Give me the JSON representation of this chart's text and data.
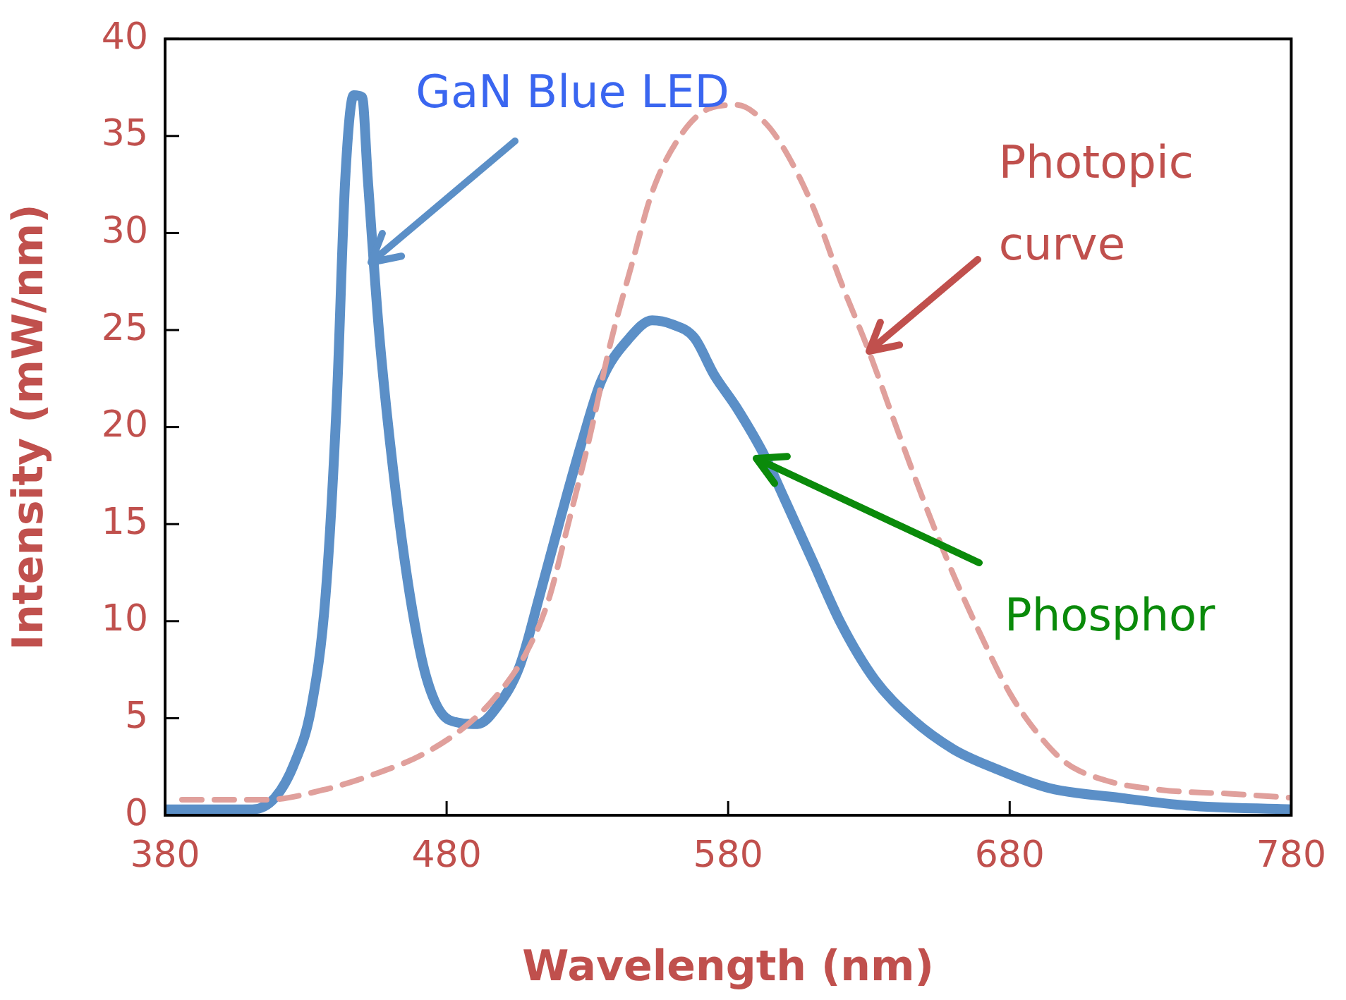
{
  "chart_data": {
    "type": "line",
    "xlabel": "Wavelength (nm)",
    "ylabel": "Intensity (mW/nm)",
    "xlim": [
      380,
      780
    ],
    "xticks": [
      380,
      480,
      580,
      680,
      780
    ],
    "ylim": [
      0,
      40
    ],
    "yticks": [
      0,
      5,
      10,
      15,
      20,
      25,
      30,
      35,
      40
    ],
    "grid": false,
    "legend": false,
    "marker": "none",
    "series": [
      {
        "color": "#5b8fc7",
        "line_style": "solid",
        "x": [
          380,
          411,
          419,
          426,
          432,
          437,
          441,
          444,
          447,
          450,
          452,
          456,
          461,
          467,
          473,
          481,
          491,
          498,
          506,
          513,
          521,
          528,
          535,
          545,
          553,
          560,
          568,
          575,
          583,
          593,
          600,
          610,
          620,
          632,
          645,
          660,
          675,
          694,
          719,
          743,
          780
        ],
        "values": [
          0.3,
          0.3,
          0.9,
          2.7,
          5.6,
          11.3,
          21.4,
          32.8,
          37.1,
          37,
          32.8,
          24.9,
          17.8,
          11.3,
          7,
          4.9,
          4.7,
          5.6,
          7.7,
          11.3,
          15.6,
          19.2,
          22.4,
          24.6,
          25.5,
          25.3,
          24.6,
          22.7,
          21,
          18.5,
          16.3,
          13.1,
          9.9,
          7,
          5,
          3.4,
          2.4,
          1.4,
          0.9,
          0.5,
          0.3
        ]
      },
      {
        "color": "#e0a09c",
        "line_style": "dashed",
        "x": [
          386,
          416,
          436,
          456,
          471,
          486,
          498,
          508,
          516,
          523,
          531,
          538,
          546,
          553,
          563,
          573,
          583,
          593,
          600,
          610,
          620,
          630,
          640,
          650,
          660,
          670,
          680,
          690,
          700,
          714,
          734,
          759,
          780
        ],
        "values": [
          0.8,
          0.8,
          1.3,
          2.2,
          3.1,
          4.5,
          6.2,
          8.3,
          11,
          14.9,
          19.6,
          24.2,
          28.5,
          32.1,
          35,
          36.4,
          36.6,
          35.7,
          34.3,
          31.4,
          27.5,
          23.9,
          19.9,
          16,
          12.4,
          9.2,
          6.3,
          4.2,
          2.7,
          1.8,
          1.3,
          1.1,
          0.9
        ]
      }
    ],
    "annotations": [
      {
        "text": "GaN Blue LED",
        "x": 453,
        "y": 28.5
      },
      {
        "text": "Photopic curve",
        "x": 630,
        "y": 23.9
      },
      {
        "text": "Phosphor",
        "x": 590,
        "y": 18.4
      }
    ]
  }
}
